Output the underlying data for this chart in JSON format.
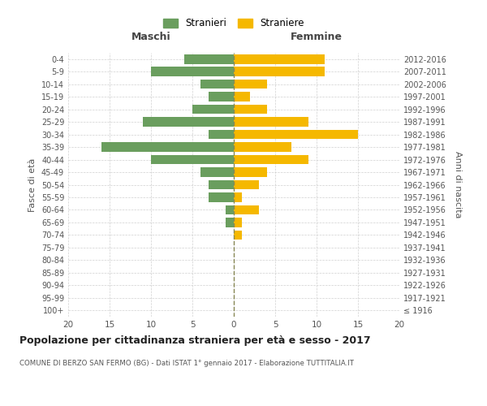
{
  "age_groups": [
    "100+",
    "95-99",
    "90-94",
    "85-89",
    "80-84",
    "75-79",
    "70-74",
    "65-69",
    "60-64",
    "55-59",
    "50-54",
    "45-49",
    "40-44",
    "35-39",
    "30-34",
    "25-29",
    "20-24",
    "15-19",
    "10-14",
    "5-9",
    "0-4"
  ],
  "birth_years": [
    "≤ 1916",
    "1917-1921",
    "1922-1926",
    "1927-1931",
    "1932-1936",
    "1937-1941",
    "1942-1946",
    "1947-1951",
    "1952-1956",
    "1957-1961",
    "1962-1966",
    "1967-1971",
    "1972-1976",
    "1977-1981",
    "1982-1986",
    "1987-1991",
    "1992-1996",
    "1997-2001",
    "2002-2006",
    "2007-2011",
    "2012-2016"
  ],
  "maschi": [
    0,
    0,
    0,
    0,
    0,
    0,
    0,
    1,
    1,
    3,
    3,
    4,
    10,
    16,
    3,
    11,
    5,
    3,
    4,
    10,
    6
  ],
  "femmine": [
    0,
    0,
    0,
    0,
    0,
    0,
    1,
    1,
    3,
    1,
    3,
    4,
    9,
    7,
    15,
    9,
    4,
    2,
    4,
    11,
    11
  ],
  "color_maschi": "#6a9e5e",
  "color_femmine": "#f5b800",
  "title": "Popolazione per cittadinanza straniera per età e sesso - 2017",
  "subtitle": "COMUNE DI BERZO SAN FERMO (BG) - Dati ISTAT 1° gennaio 2017 - Elaborazione TUTTITALIA.IT",
  "xlabel_left": "Maschi",
  "xlabel_right": "Femmine",
  "ylabel_left": "Fasce di età",
  "ylabel_right": "Anni di nascita",
  "legend_maschi": "Stranieri",
  "legend_femmine": "Straniere",
  "xlim": 20,
  "background_color": "#ffffff",
  "grid_color": "#cccccc"
}
